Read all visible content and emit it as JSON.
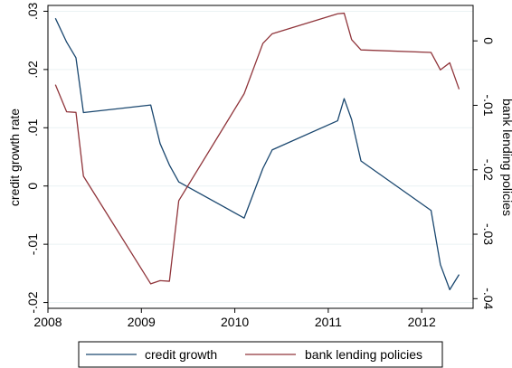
{
  "chart_data": {
    "type": "line",
    "title": "",
    "xlabel": "",
    "xlim": [
      2008.0,
      2012.55
    ],
    "x_ticks": [
      2008,
      2009,
      2010,
      2011,
      2012
    ],
    "x_tick_labels": [
      "2008",
      "2009",
      "2010",
      "2011",
      "2012"
    ],
    "y_left": {
      "label": "credit growth rate",
      "lim": [
        -0.021,
        0.031
      ],
      "ticks": [
        -0.02,
        -0.01,
        0,
        0.01,
        0.02,
        0.03
      ],
      "tick_labels": [
        "-.02",
        "-.01",
        "0",
        ".01",
        ".02",
        ".03"
      ]
    },
    "y_right": {
      "label": "bank lending policies",
      "lim": [
        -0.0415,
        0.0055
      ],
      "ticks": [
        -0.04,
        -0.03,
        -0.02,
        -0.01,
        0
      ],
      "tick_labels": [
        "-.04",
        "-.03",
        "-.02",
        "-.01",
        "0"
      ]
    },
    "grid": true,
    "legend_position": "bottom",
    "series": [
      {
        "name": "credit growth",
        "axis": "left",
        "color": "#1a476f",
        "x": [
          2008.08,
          2008.2,
          2008.3,
          2008.38,
          2009.1,
          2009.2,
          2009.3,
          2009.4,
          2010.1,
          2010.3,
          2010.4,
          2011.1,
          2011.17,
          2011.25,
          2011.35,
          2012.1,
          2012.2,
          2012.3,
          2012.4
        ],
        "y": [
          0.0288,
          0.0247,
          0.022,
          0.0126,
          0.0139,
          0.0073,
          0.0036,
          0.0007,
          -0.0055,
          0.003,
          0.0062,
          0.0112,
          0.015,
          0.0114,
          0.0043,
          -0.0042,
          -0.0135,
          -0.0178,
          -0.0152
        ]
      },
      {
        "name": "bank lending policies",
        "axis": "right",
        "color": "#90353b",
        "x": [
          2008.08,
          2008.2,
          2008.3,
          2008.38,
          2009.1,
          2009.2,
          2009.3,
          2009.4,
          2010.1,
          2010.3,
          2010.4,
          2011.1,
          2011.17,
          2011.25,
          2011.35,
          2012.1,
          2012.2,
          2012.3,
          2012.4
        ],
        "y": [
          -0.0068,
          -0.011,
          -0.0111,
          -0.021,
          -0.0377,
          -0.0372,
          -0.0373,
          -0.0248,
          -0.0082,
          -0.0004,
          0.0011,
          0.0042,
          0.0043,
          0.0002,
          -0.0014,
          -0.0018,
          -0.0045,
          -0.0034,
          -0.0075
        ]
      }
    ]
  }
}
